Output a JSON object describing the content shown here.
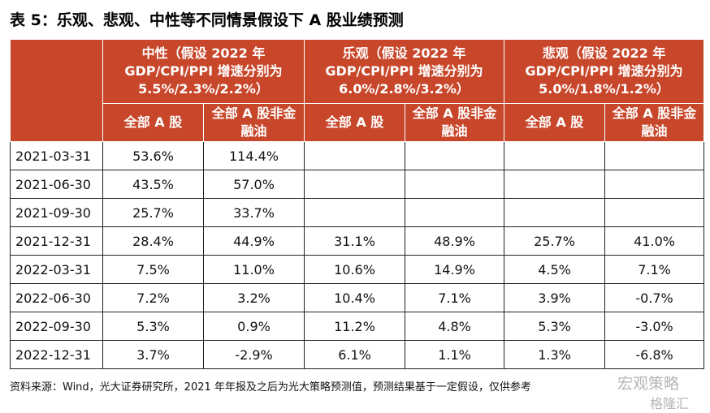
{
  "title": "表 5：乐观、悲观、中性等不同情景假设下 A 股业绩预测",
  "table": {
    "groups": [
      {
        "lines": [
          "中性（假设 2022 年",
          "GDP/CPI/PPI 增速分别为",
          "5.5%/2.3%/2.2%）"
        ]
      },
      {
        "lines": [
          "乐观（假设 2022 年",
          "GDP/CPI/PPI 增速分别为",
          "6.0%/2.8%/3.2%）"
        ]
      },
      {
        "lines": [
          "悲观（假设 2022 年",
          "GDP/CPI/PPI 增速分别为",
          "5.0%/1.8%/1.2%）"
        ]
      }
    ],
    "subheaders": [
      "全部 A 股",
      "全部 A 股非金融油",
      "全部 A 股",
      "全部 A 股非金融油",
      "全部 A 股",
      "全部 A 股非金融油"
    ],
    "rows": [
      [
        "2021-03-31",
        "53.6%",
        "114.4%",
        null,
        null,
        null,
        null
      ],
      [
        "2021-06-30",
        "43.5%",
        "57.0%",
        null,
        null,
        null,
        null
      ],
      [
        "2021-09-30",
        "25.7%",
        "33.7%",
        null,
        null,
        null,
        null
      ],
      [
        "2021-12-31",
        "28.4%",
        "44.9%",
        "31.1%",
        "48.9%",
        "25.7%",
        "41.0%"
      ],
      [
        "2022-03-31",
        "7.5%",
        "11.0%",
        "10.6%",
        "14.9%",
        "4.5%",
        "7.1%"
      ],
      [
        "2022-06-30",
        "7.2%",
        "3.2%",
        "10.4%",
        "7.1%",
        "3.9%",
        "-0.7%"
      ],
      [
        "2022-09-30",
        "5.3%",
        "0.9%",
        "11.2%",
        "4.8%",
        "5.3%",
        "-3.0%"
      ],
      [
        "2022-12-31",
        "3.7%",
        "-2.9%",
        "6.1%",
        "1.1%",
        "1.3%",
        "-6.8%"
      ]
    ]
  },
  "source": "资料来源：Wind，光大证券研究所，2021 年年报及之后为光大策略预测值，预测结果基于一定假设，仅供参考",
  "watermark": {
    "top": "宏观策略",
    "bottom": "格隆汇"
  }
}
